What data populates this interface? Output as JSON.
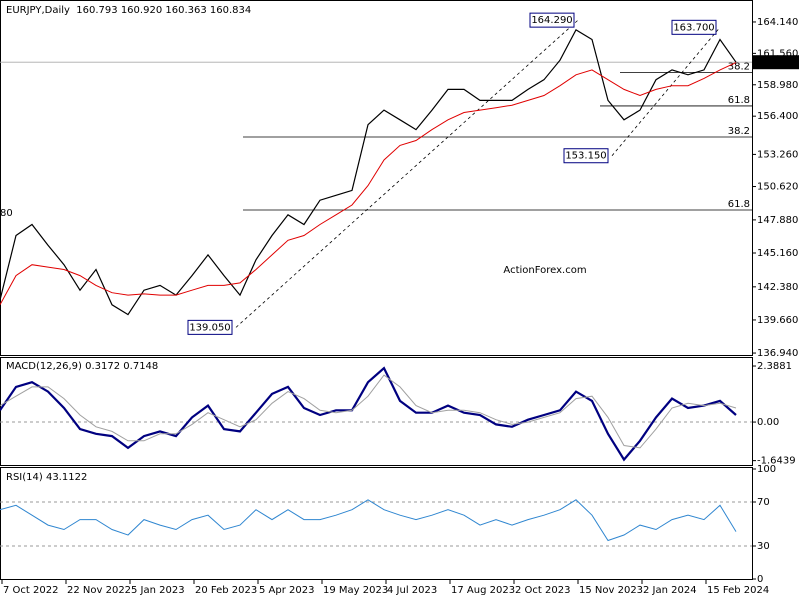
{
  "chart_data": [
    {
      "type": "line",
      "title": "EURJPY,Daily  160.793 160.920 160.363 160.834",
      "xlim": [
        0,
        376
      ],
      "ylim": [
        136.78,
        165.78
      ],
      "yticks": [
        {
          "value": 164.14,
          "label": "164.140"
        },
        {
          "value": 161.56,
          "label": "161.560"
        },
        {
          "value": 158.98,
          "label": "158.980"
        },
        {
          "value": 156.4,
          "label": "156.400"
        },
        {
          "value": 153.26,
          "label": "153.260"
        },
        {
          "value": 150.62,
          "label": "150.620"
        },
        {
          "value": 147.88,
          "label": "147.880"
        },
        {
          "value": 145.16,
          "label": "145.160"
        },
        {
          "value": 142.38,
          "label": "142.380"
        },
        {
          "value": 139.66,
          "label": "139.660"
        },
        {
          "value": 136.94,
          "label": "136.940"
        }
      ],
      "x": [
        0,
        8,
        16,
        24,
        32,
        40,
        48,
        56,
        64,
        72,
        80,
        88,
        96,
        104,
        112,
        120,
        128,
        136,
        144,
        152,
        160,
        168,
        176,
        184,
        192,
        200,
        208,
        216,
        224,
        232,
        240,
        248,
        256,
        264,
        272,
        280,
        288,
        296,
        304,
        312,
        320,
        328,
        336,
        344,
        352,
        360,
        368
      ],
      "series": [
        {
          "name": "EURJPY",
          "color": "#000000",
          "width": 1.2,
          "values": [
            141.3,
            146.6,
            147.5,
            145.8,
            144.2,
            142.1,
            143.8,
            140.9,
            140.1,
            142.1,
            142.5,
            141.7,
            143.3,
            145.0,
            143.3,
            141.7,
            144.6,
            146.6,
            148.3,
            147.5,
            149.5,
            149.9,
            150.3,
            155.7,
            156.9,
            156.1,
            155.3,
            156.9,
            158.6,
            158.6,
            157.7,
            157.7,
            157.7,
            158.6,
            159.4,
            161.0,
            163.5,
            162.7,
            157.7,
            156.1,
            156.9,
            159.4,
            160.2,
            159.8,
            160.2,
            162.7,
            160.834
          ]
        },
        {
          "name": "MA",
          "color": "#e00000",
          "width": 1,
          "values": [
            140.9,
            143.3,
            144.2,
            144.0,
            143.8,
            143.3,
            142.5,
            141.9,
            141.7,
            141.8,
            141.7,
            141.7,
            142.1,
            142.5,
            142.5,
            142.7,
            143.8,
            145.0,
            146.2,
            146.6,
            147.5,
            148.3,
            149.1,
            150.7,
            152.8,
            154.0,
            154.4,
            155.3,
            156.1,
            156.7,
            156.9,
            157.1,
            157.3,
            157.7,
            158.1,
            158.9,
            159.8,
            160.2,
            159.4,
            158.6,
            158.1,
            158.6,
            158.9,
            158.9,
            159.5,
            160.2,
            160.8
          ]
        }
      ],
      "annotations": [
        {
          "label": "164.290",
          "x": 289,
          "y": 164.29
        },
        {
          "label": "163.700",
          "x": 360,
          "y": 163.7
        },
        {
          "label": "153.150",
          "x": 306,
          "y": 153.15
        },
        {
          "label": "139.050",
          "x": 118,
          "y": 139.05
        }
      ],
      "cut_label": "80",
      "levels": [
        {
          "label": "38.2",
          "value": 160.0
        },
        {
          "label": "61.8",
          "value": 157.24
        },
        {
          "label": "38.2",
          "value": 154.69
        },
        {
          "label": "61.8",
          "value": 148.69
        }
      ],
      "last_price": {
        "value": 160.834,
        "label": "160.834"
      },
      "watermark": "ActionForex.com"
    },
    {
      "type": "line",
      "title": "MACD(12,26,9) 0.3172 0.7148",
      "xlim": [
        0,
        376
      ],
      "ylim": [
        -1.83,
        2.73
      ],
      "yticks": [
        2.3881,
        {
          "value": 0,
          "label": "0.00"
        },
        -1.6439
      ],
      "ref_lines": [
        0
      ],
      "x": [
        0,
        8,
        16,
        24,
        32,
        40,
        48,
        56,
        64,
        72,
        80,
        88,
        96,
        104,
        112,
        120,
        128,
        136,
        144,
        152,
        160,
        168,
        176,
        184,
        192,
        200,
        208,
        216,
        224,
        232,
        240,
        248,
        256,
        264,
        272,
        280,
        288,
        296,
        304,
        312,
        320,
        328,
        336,
        344,
        352,
        360,
        368
      ],
      "series": [
        {
          "name": "MACD",
          "color": "#000080",
          "width": 2.2,
          "values": [
            0.5,
            1.5,
            1.7,
            1.3,
            0.6,
            -0.3,
            -0.5,
            -0.6,
            -1.1,
            -0.6,
            -0.4,
            -0.6,
            0.2,
            0.7,
            -0.3,
            -0.4,
            0.4,
            1.2,
            1.5,
            0.6,
            0.3,
            0.5,
            0.5,
            1.7,
            2.3,
            0.9,
            0.4,
            0.4,
            0.7,
            0.4,
            0.3,
            -0.1,
            -0.2,
            0.1,
            0.3,
            0.5,
            1.3,
            0.9,
            -0.5,
            -1.6,
            -0.8,
            0.2,
            1.0,
            0.6,
            0.7,
            0.9,
            0.3
          ]
        },
        {
          "name": "Signal",
          "color": "#a0a0a0",
          "width": 1,
          "values": [
            0.7,
            1.1,
            1.5,
            1.5,
            1.0,
            0.3,
            -0.2,
            -0.4,
            -0.8,
            -0.8,
            -0.5,
            -0.5,
            -0.1,
            0.4,
            0.1,
            -0.2,
            0.1,
            0.8,
            1.3,
            1.0,
            0.5,
            0.4,
            0.5,
            1.1,
            2.0,
            1.5,
            0.7,
            0.4,
            0.5,
            0.5,
            0.4,
            0.1,
            -0.1,
            0.0,
            0.2,
            0.4,
            1.0,
            1.1,
            0.2,
            -1.0,
            -1.1,
            -0.3,
            0.6,
            0.8,
            0.7,
            0.8,
            0.6
          ]
        }
      ]
    },
    {
      "type": "line",
      "title": "RSI(14) 43.1122",
      "xlim": [
        0,
        376
      ],
      "ylim": [
        0,
        100
      ],
      "yticks": [
        100,
        70,
        30,
        0
      ],
      "ref_lines": [
        70,
        30
      ],
      "xticks": [
        {
          "value": 1,
          "label": "7 Oct 2022"
        },
        {
          "value": 33,
          "label": "22 Nov 2022"
        },
        {
          "value": 65,
          "label": "5 Jan 2023"
        },
        {
          "value": 97,
          "label": "20 Feb 2023"
        },
        {
          "value": 129,
          "label": "5 Apr 2023"
        },
        {
          "value": 161,
          "label": "19 May 2023"
        },
        {
          "value": 193,
          "label": "4 Jul 2023"
        },
        {
          "value": 225,
          "label": "17 Aug 2023"
        },
        {
          "value": 257,
          "label": "2 Oct 2023"
        },
        {
          "value": 289,
          "label": "15 Nov 2023"
        },
        {
          "value": 321,
          "label": "2 Jan 2024"
        },
        {
          "value": 353,
          "label": "15 Feb 2024"
        }
      ],
      "x": [
        0,
        8,
        16,
        24,
        32,
        40,
        48,
        56,
        64,
        72,
        80,
        88,
        96,
        104,
        112,
        120,
        128,
        136,
        144,
        152,
        160,
        168,
        176,
        184,
        192,
        200,
        208,
        216,
        224,
        232,
        240,
        248,
        256,
        264,
        272,
        280,
        288,
        296,
        304,
        312,
        320,
        328,
        336,
        344,
        352,
        360,
        368
      ],
      "series": [
        {
          "name": "RSI",
          "color": "#2f86d0",
          "width": 1,
          "values": [
            63,
            67,
            58,
            49,
            45,
            54,
            54,
            45,
            40,
            54,
            49,
            45,
            54,
            58,
            45,
            49,
            63,
            54,
            63,
            54,
            54,
            58,
            63,
            72,
            63,
            58,
            54,
            58,
            63,
            58,
            49,
            54,
            49,
            54,
            58,
            63,
            72,
            58,
            35,
            40,
            49,
            45,
            54,
            58,
            54,
            67,
            43.1122
          ]
        }
      ]
    }
  ]
}
